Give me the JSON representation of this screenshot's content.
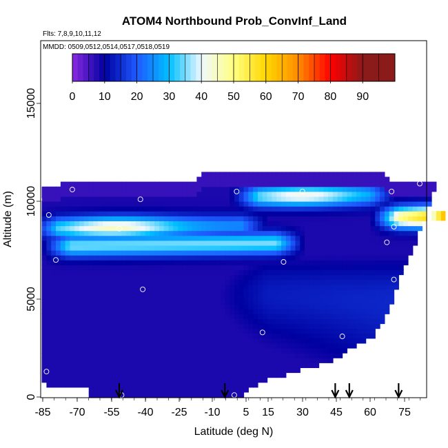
{
  "chart_data": {
    "type": "heatmap",
    "title": "ATOM4 Northbound Prob_ConvInf_Land",
    "flights_label": "Flts: 7,8,9,10,11,12",
    "dates_label": "MMDD: 0509,0512,0514,0517,0518,0519",
    "xlabel": "Latitude (deg N)",
    "ylabel": "Altitude (m)",
    "xlim": [
      -87,
      86
    ],
    "ylim": [
      0,
      18000
    ],
    "x_ticks": [
      -85,
      -70,
      -55,
      -40,
      -25,
      -10,
      5,
      15,
      30,
      45,
      60,
      75
    ],
    "y_ticks": [
      0,
      5000,
      10000,
      15000
    ],
    "colorbar": {
      "ticks": [
        0,
        10,
        20,
        30,
        40,
        50,
        60,
        70,
        80,
        90
      ],
      "range": [
        0,
        100
      ],
      "colors": [
        "#8A2BE2",
        "#0000A0",
        "#1E5AFF",
        "#00BFFF",
        "#F0F8FF",
        "#FFFF80",
        "#FFD700",
        "#FF8C00",
        "#FF0000",
        "#8B1A1A"
      ]
    },
    "column_top_altitude": [
      {
        "lat": -86,
        "alt": 10500
      },
      {
        "lat": -75,
        "alt": 10850
      },
      {
        "lat": -50,
        "alt": 10850
      },
      {
        "lat": -20,
        "alt": 10850
      },
      {
        "lat": -18,
        "alt": 11300
      },
      {
        "lat": 10,
        "alt": 11300
      },
      {
        "lat": 30,
        "alt": 11300
      },
      {
        "lat": 60,
        "alt": 11300
      },
      {
        "lat": 62,
        "alt": 10800
      },
      {
        "lat": 76,
        "alt": 10800
      }
    ],
    "surface_altitude": [
      {
        "lat": -86,
        "alt": 1000
      },
      {
        "lat": -82,
        "alt": 500
      },
      {
        "lat": -66,
        "alt": 500
      },
      {
        "lat": -65,
        "alt": 0
      },
      {
        "lat": 0,
        "alt": 0
      },
      {
        "lat": 2,
        "alt": 500
      },
      {
        "lat": 10,
        "alt": 1000
      },
      {
        "lat": 25,
        "alt": 1500
      },
      {
        "lat": 38,
        "alt": 2000
      },
      {
        "lat": 48,
        "alt": 2800
      },
      {
        "lat": 55,
        "alt": 3200
      },
      {
        "lat": 62,
        "alt": 4500
      },
      {
        "lat": 66,
        "alt": 6000
      },
      {
        "lat": 70,
        "alt": 7000
      },
      {
        "lat": 75,
        "alt": 8500
      },
      {
        "lat": 79,
        "alt": 9800
      },
      {
        "lat": 80,
        "alt": 10500
      }
    ],
    "high_probability_bands": [
      {
        "alt_center": 8700,
        "lat_range": [
          -85,
          5
        ],
        "peak_lat": -55,
        "peak_value": 45
      },
      {
        "alt_center": 7800,
        "lat_range": [
          -80,
          20
        ],
        "peak_value": 35
      },
      {
        "alt_center": 10300,
        "lat_range": [
          0,
          60
        ],
        "peak_lat": 25,
        "peak_value": 42
      },
      {
        "alt_center": 9200,
        "lat_range": [
          60,
          86
        ],
        "peak_lat": 84,
        "peak_value": 60
      }
    ],
    "sample_points": [
      [
        -87,
        10100
      ],
      [
        -83,
        9300
      ],
      [
        -73,
        10600
      ],
      [
        -84,
        1300
      ],
      [
        -80,
        7000
      ],
      [
        -53,
        8600
      ],
      [
        -44,
        10100
      ],
      [
        -43,
        5500
      ],
      [
        -52,
        100
      ],
      [
        -3,
        10500
      ],
      [
        -4,
        100
      ],
      [
        8,
        3300
      ],
      [
        17,
        6900
      ],
      [
        25,
        10500
      ],
      [
        42,
        3100
      ],
      [
        60,
        3100
      ],
      [
        61,
        7900
      ],
      [
        63,
        10500
      ],
      [
        64,
        8700
      ],
      [
        64,
        6000
      ],
      [
        75,
        10900
      ],
      [
        78,
        8200
      ]
    ],
    "arrows_lat": [
      -53,
      -8,
      39,
      45,
      66
    ]
  }
}
